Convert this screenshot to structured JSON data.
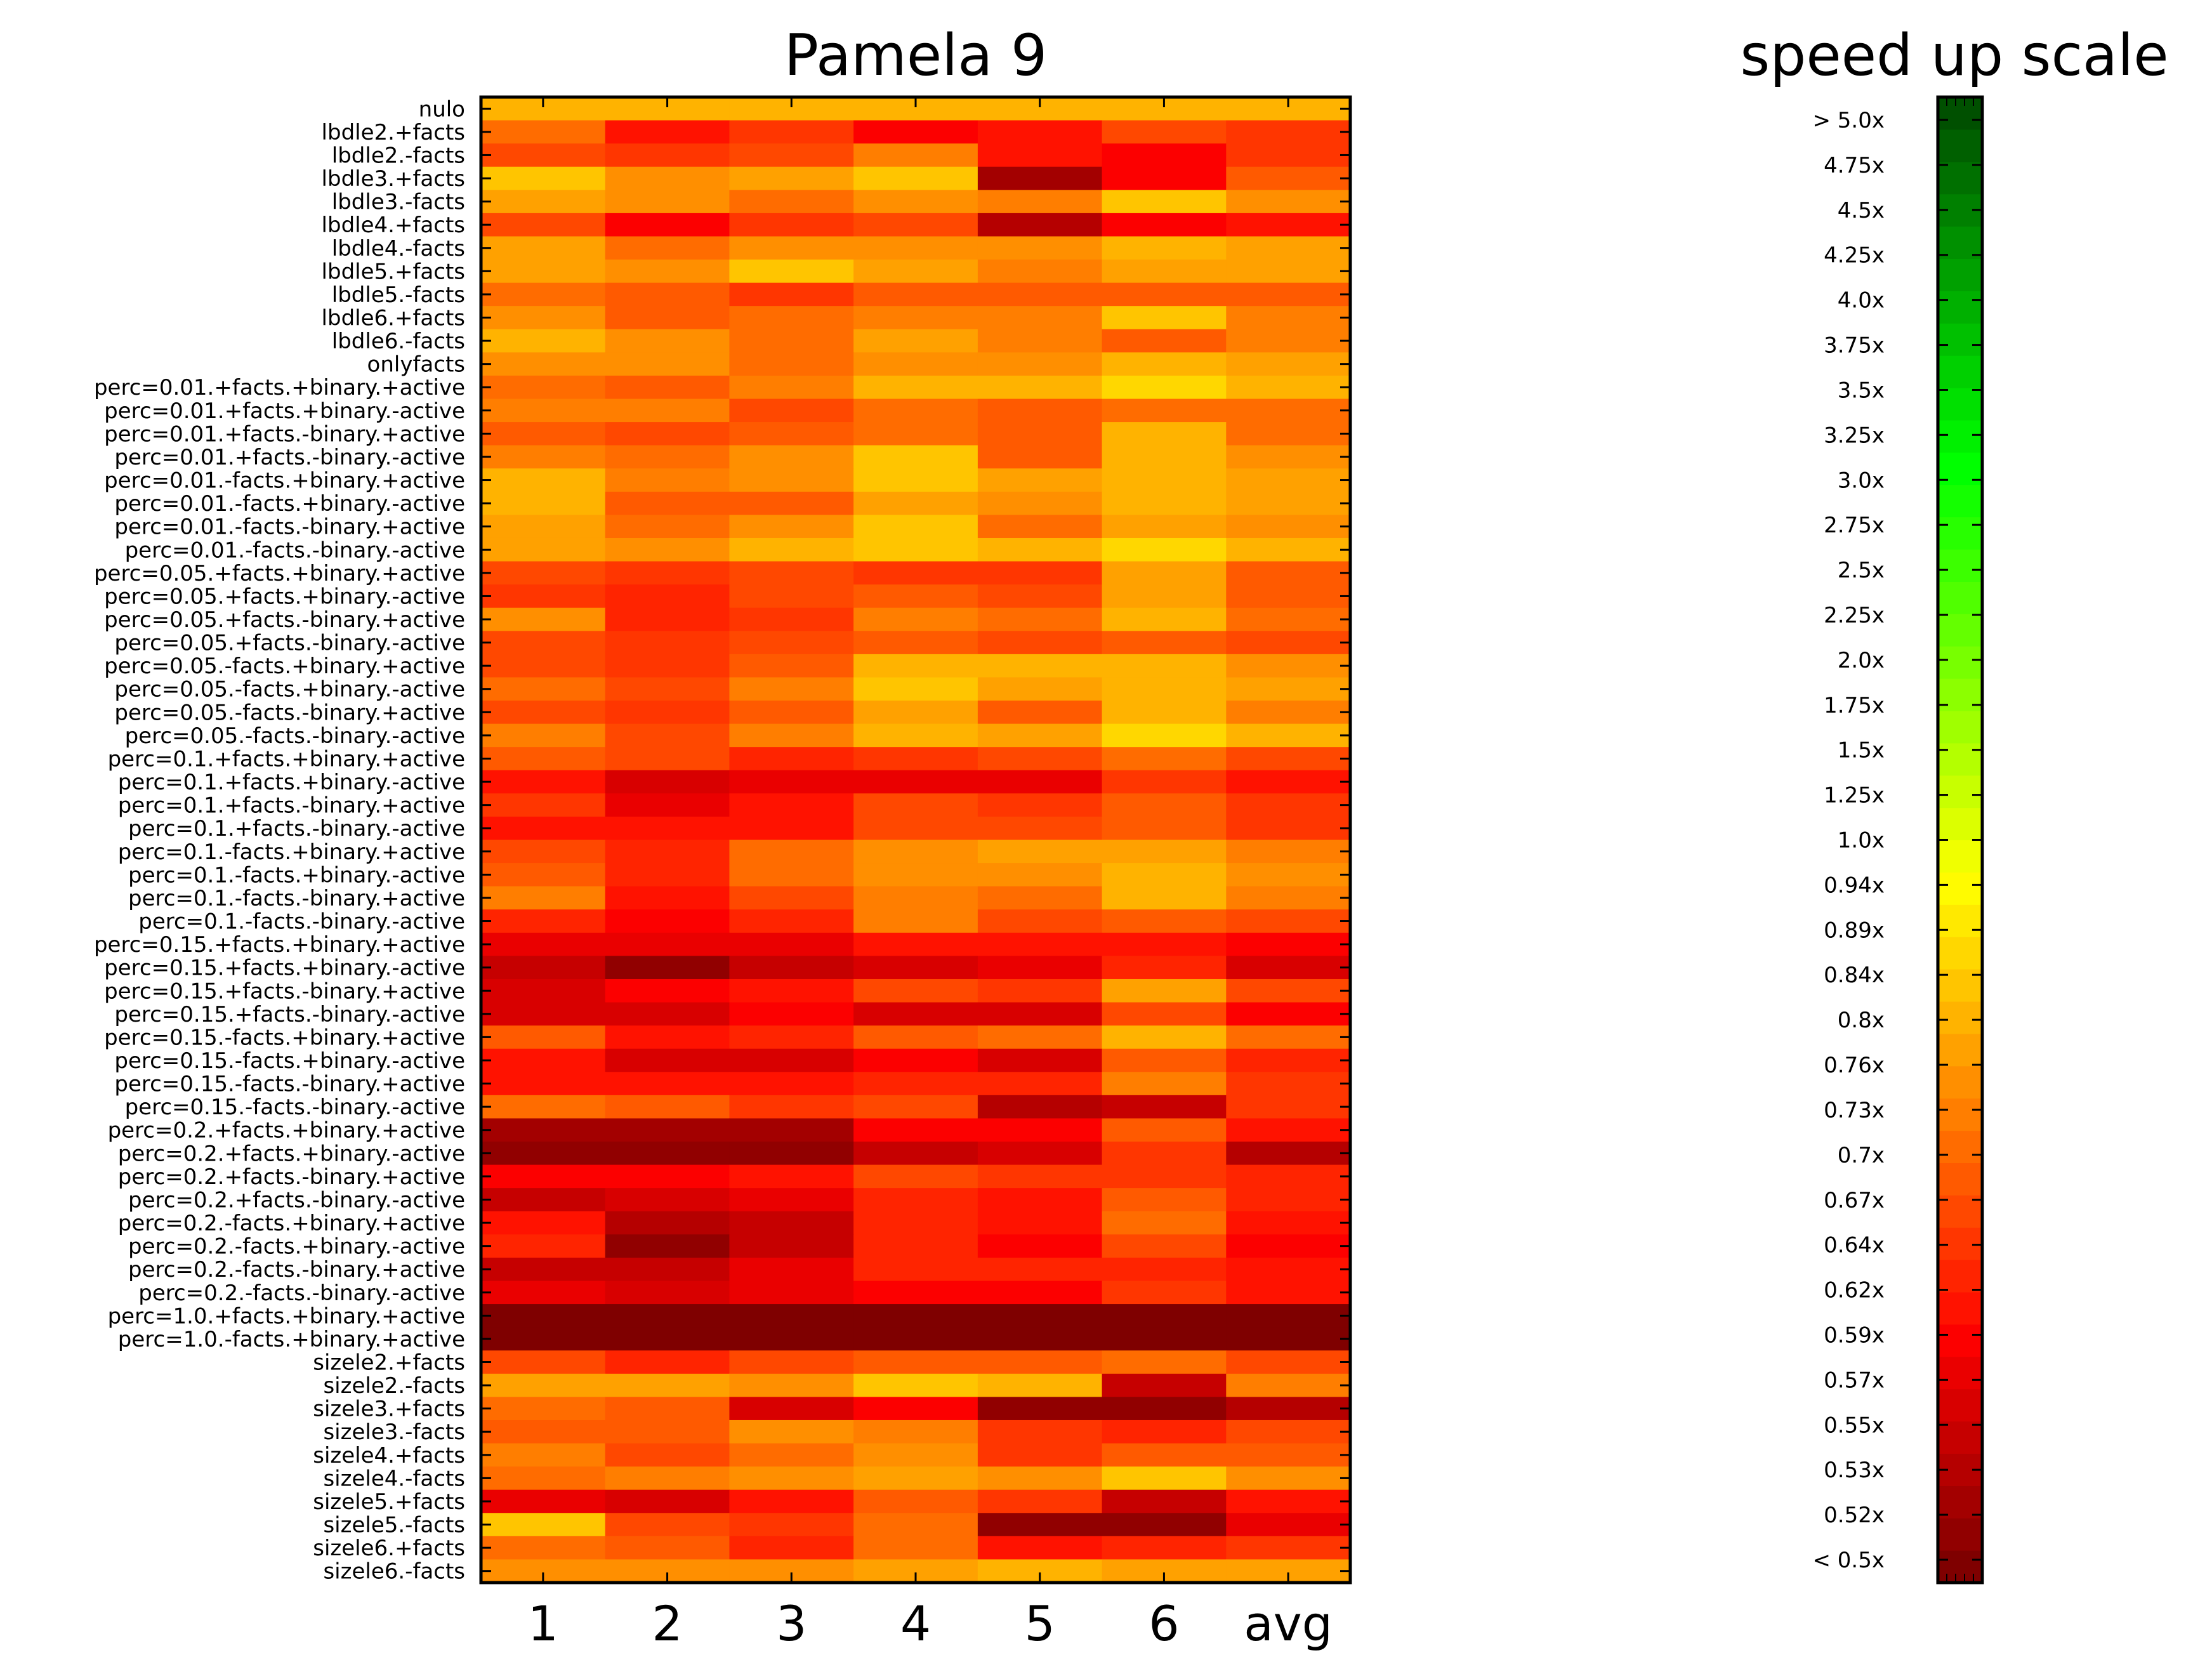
{
  "chart_data": [
    {
      "type": "heatmap",
      "title": "Pamela 9",
      "x_categories": [
        "1",
        "2",
        "3",
        "4",
        "5",
        "6",
        "avg"
      ],
      "y_categories": [
        "nulo",
        "lbdle2.+facts",
        "lbdle2.-facts",
        "lbdle3.+facts",
        "lbdle3.-facts",
        "lbdle4.+facts",
        "lbdle4.-facts",
        "lbdle5.+facts",
        "lbdle5.-facts",
        "lbdle6.+facts",
        "lbdle6.-facts",
        "onlyfacts",
        "perc=0.01.+facts.+binary.+active",
        "perc=0.01.+facts.+binary.-active",
        "perc=0.01.+facts.-binary.+active",
        "perc=0.01.+facts.-binary.-active",
        "perc=0.01.-facts.+binary.+active",
        "perc=0.01.-facts.+binary.-active",
        "perc=0.01.-facts.-binary.+active",
        "perc=0.01.-facts.-binary.-active",
        "perc=0.05.+facts.+binary.+active",
        "perc=0.05.+facts.+binary.-active",
        "perc=0.05.+facts.-binary.+active",
        "perc=0.05.+facts.-binary.-active",
        "perc=0.05.-facts.+binary.+active",
        "perc=0.05.-facts.+binary.-active",
        "perc=0.05.-facts.-binary.+active",
        "perc=0.05.-facts.-binary.-active",
        "perc=0.1.+facts.+binary.+active",
        "perc=0.1.+facts.+binary.-active",
        "perc=0.1.+facts.-binary.+active",
        "perc=0.1.+facts.-binary.-active",
        "perc=0.1.-facts.+binary.+active",
        "perc=0.1.-facts.+binary.-active",
        "perc=0.1.-facts.-binary.+active",
        "perc=0.1.-facts.-binary.-active",
        "perc=0.15.+facts.+binary.+active",
        "perc=0.15.+facts.+binary.-active",
        "perc=0.15.+facts.-binary.+active",
        "perc=0.15.+facts.-binary.-active",
        "perc=0.15.-facts.+binary.+active",
        "perc=0.15.-facts.+binary.-active",
        "perc=0.15.-facts.-binary.+active",
        "perc=0.15.-facts.-binary.-active",
        "perc=0.2.+facts.+binary.+active",
        "perc=0.2.+facts.+binary.-active",
        "perc=0.2.+facts.-binary.+active",
        "perc=0.2.+facts.-binary.-active",
        "perc=0.2.-facts.+binary.+active",
        "perc=0.2.-facts.+binary.-active",
        "perc=0.2.-facts.-binary.+active",
        "perc=0.2.-facts.-binary.-active",
        "perc=1.0.+facts.+binary.+active",
        "perc=1.0.-facts.+binary.+active",
        "sizele2.+facts",
        "sizele2.-facts",
        "sizele3.+facts",
        "sizele3.-facts",
        "sizele4.+facts",
        "sizele4.-facts",
        "sizele5.+facts",
        "sizele5.-facts",
        "sizele6.+facts",
        "sizele6.-facts"
      ],
      "values": [
        [
          17,
          17,
          17,
          17,
          17,
          17,
          17
        ],
        [
          13,
          8,
          10,
          7,
          8,
          11,
          10
        ],
        [
          11,
          10,
          11,
          14,
          8,
          7,
          10
        ],
        [
          18,
          15,
          16,
          18,
          2,
          7,
          12
        ],
        [
          16,
          15,
          13,
          15,
          14,
          18,
          15
        ],
        [
          11,
          7,
          10,
          11,
          3,
          7,
          8
        ],
        [
          16,
          13,
          15,
          15,
          15,
          17,
          16
        ],
        [
          16,
          15,
          18,
          16,
          14,
          16,
          16
        ],
        [
          13,
          12,
          10,
          12,
          12,
          12,
          12
        ],
        [
          15,
          12,
          13,
          14,
          14,
          18,
          14
        ],
        [
          17,
          15,
          13,
          16,
          14,
          12,
          14
        ],
        [
          15,
          15,
          13,
          15,
          15,
          17,
          16
        ],
        [
          13,
          12,
          14,
          17,
          17,
          19,
          17
        ],
        [
          14,
          14,
          11,
          13,
          12,
          13,
          13
        ],
        [
          12,
          11,
          12,
          13,
          12,
          17,
          13
        ],
        [
          14,
          13,
          15,
          18,
          12,
          17,
          15
        ],
        [
          17,
          14,
          15,
          18,
          16,
          17,
          16
        ],
        [
          17,
          12,
          12,
          16,
          15,
          17,
          16
        ],
        [
          16,
          13,
          15,
          18,
          13,
          16,
          15
        ],
        [
          16,
          15,
          17,
          18,
          17,
          19,
          17
        ],
        [
          11,
          10,
          11,
          10,
          10,
          16,
          12
        ],
        [
          10,
          9,
          11,
          12,
          11,
          16,
          12
        ],
        [
          15,
          9,
          10,
          14,
          13,
          17,
          13
        ],
        [
          11,
          10,
          11,
          12,
          11,
          12,
          11
        ],
        [
          11,
          10,
          12,
          17,
          17,
          17,
          15
        ],
        [
          13,
          11,
          14,
          18,
          16,
          17,
          16
        ],
        [
          11,
          10,
          12,
          16,
          12,
          17,
          14
        ],
        [
          14,
          11,
          14,
          17,
          16,
          19,
          17
        ],
        [
          12,
          11,
          9,
          10,
          11,
          13,
          11
        ],
        [
          8,
          5,
          6,
          6,
          6,
          10,
          8
        ],
        [
          10,
          6,
          8,
          11,
          10,
          12,
          10
        ],
        [
          8,
          8,
          8,
          11,
          11,
          12,
          10
        ],
        [
          11,
          9,
          13,
          15,
          16,
          16,
          14
        ],
        [
          12,
          9,
          13,
          15,
          15,
          17,
          15
        ],
        [
          14,
          8,
          11,
          14,
          13,
          17,
          14
        ],
        [
          9,
          7,
          9,
          14,
          11,
          12,
          11
        ],
        [
          6,
          6,
          6,
          8,
          8,
          8,
          7
        ],
        [
          4,
          1,
          4,
          5,
          6,
          9,
          5
        ],
        [
          5,
          7,
          8,
          11,
          10,
          16,
          11
        ],
        [
          5,
          5,
          7,
          5,
          5,
          11,
          7
        ],
        [
          12,
          8,
          9,
          12,
          13,
          17,
          13
        ],
        [
          8,
          5,
          5,
          7,
          5,
          12,
          9
        ],
        [
          8,
          8,
          8,
          9,
          9,
          14,
          10
        ],
        [
          13,
          12,
          10,
          11,
          3,
          4,
          10
        ],
        [
          2,
          2,
          2,
          7,
          7,
          12,
          8
        ],
        [
          1,
          1,
          1,
          4,
          5,
          10,
          3
        ],
        [
          7,
          7,
          8,
          11,
          10,
          10,
          9
        ],
        [
          4,
          5,
          6,
          9,
          8,
          12,
          9
        ],
        [
          8,
          3,
          4,
          9,
          8,
          13,
          8
        ],
        [
          9,
          1,
          4,
          9,
          7,
          11,
          7
        ],
        [
          4,
          4,
          6,
          9,
          9,
          9,
          8
        ],
        [
          6,
          5,
          6,
          7,
          7,
          10,
          8
        ],
        [
          0,
          0,
          0,
          0,
          0,
          0,
          0
        ],
        [
          0,
          0,
          0,
          0,
          0,
          0,
          0
        ],
        [
          11,
          9,
          11,
          12,
          12,
          13,
          11
        ],
        [
          16,
          16,
          15,
          18,
          17,
          4,
          14
        ],
        [
          13,
          12,
          5,
          7,
          1,
          1,
          3
        ],
        [
          12,
          12,
          15,
          14,
          10,
          9,
          11
        ],
        [
          14,
          11,
          13,
          15,
          10,
          12,
          12
        ],
        [
          13,
          14,
          15,
          16,
          15,
          18,
          15
        ],
        [
          6,
          5,
          8,
          12,
          10,
          4,
          8
        ],
        [
          18,
          11,
          10,
          13,
          1,
          1,
          6
        ],
        [
          13,
          12,
          9,
          13,
          8,
          9,
          10
        ],
        [
          15,
          15,
          15,
          16,
          17,
          16,
          16
        ]
      ]
    },
    {
      "type": "colorbar",
      "title": "speed up scale",
      "tick_labels": [
        "> 5.0x",
        "4.75x",
        "4.5x",
        "4.25x",
        "4.0x",
        "3.75x",
        "3.5x",
        "3.25x",
        "3.0x",
        "2.75x",
        "2.5x",
        "2.25x",
        "2.0x",
        "1.75x",
        "1.5x",
        "1.25x",
        "1.0x",
        "0.94x",
        "0.89x",
        "0.84x",
        "0.8x",
        "0.76x",
        "0.73x",
        "0.7x",
        "0.67x",
        "0.64x",
        "0.62x",
        "0.59x",
        "0.57x",
        "0.55x",
        "0.53x",
        "0.52x",
        "< 0.5x"
      ],
      "colors": [
        "#7f0000",
        "#910000",
        "#a30000",
        "#b50000",
        "#c60000",
        "#d80000",
        "#ea0000",
        "#fc0000",
        "#ff1200",
        "#ff2400",
        "#ff3600",
        "#ff4800",
        "#ff5a00",
        "#ff6c00",
        "#ff7e00",
        "#ff8f00",
        "#ffa100",
        "#ffb300",
        "#ffc500",
        "#ffd700",
        "#ffe900",
        "#fffb00",
        "#f0ff00",
        "#dcff00",
        "#c8ff00",
        "#b4ff00",
        "#a0ff00",
        "#8cff00",
        "#78ff00",
        "#64ff00",
        "#50ff00",
        "#3cff00",
        "#28ff00",
        "#14ff00",
        "#00ff00",
        "#00f000",
        "#00e000",
        "#00d000",
        "#00c000",
        "#00b000",
        "#00a000",
        "#009000",
        "#008000",
        "#007000",
        "#006000",
        "#005000"
      ]
    }
  ]
}
